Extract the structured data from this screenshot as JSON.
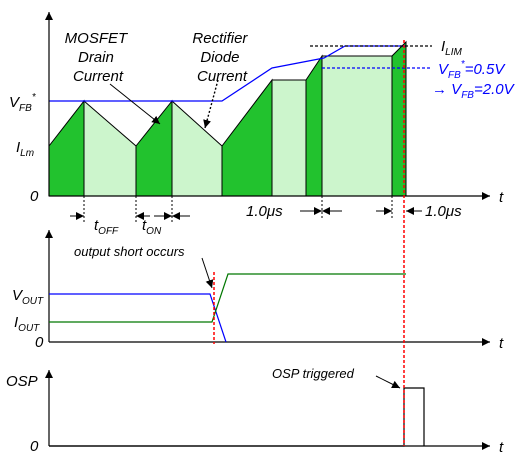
{
  "labels": {
    "mosfet": [
      "MOSFET",
      "Drain",
      "Current"
    ],
    "rectifier": [
      "Rectifier",
      "Diode",
      "Current"
    ],
    "t_off": {
      "base": "t",
      "sub": "OFF"
    },
    "t_on": {
      "base": "t",
      "sub": "ON"
    },
    "time_1": "1.0μs",
    "time_2": "1.0μs",
    "output_short": "output short occurs",
    "osp_triggered": "OSP triggered",
    "t_axis": "t",
    "zero": "0"
  },
  "axes": {
    "vfb_star": {
      "base": "V",
      "sub": "FB",
      "sup": "*"
    },
    "ilm": {
      "base": "I",
      "sub": "Lm"
    },
    "ilim": {
      "base": "I",
      "sub": "LIM"
    },
    "vout": {
      "base": "V",
      "sub": "OUT"
    },
    "iout": {
      "base": "I",
      "sub": "OUT"
    },
    "osp": "OSP"
  },
  "vfb_change": {
    "line1": {
      "base": "V",
      "sub": "FB",
      "sup": "*",
      "rest": "=0.5V"
    },
    "line2": {
      "arrow": "→ ",
      "base": "V",
      "sub": "FB",
      "rest": "=2.0V"
    }
  },
  "colors": {
    "dark_green": "#22c22e",
    "light_green": "#ccf5cc",
    "blue": "#0000ff",
    "red": "#ff0000",
    "output_green": "#007700"
  }
}
